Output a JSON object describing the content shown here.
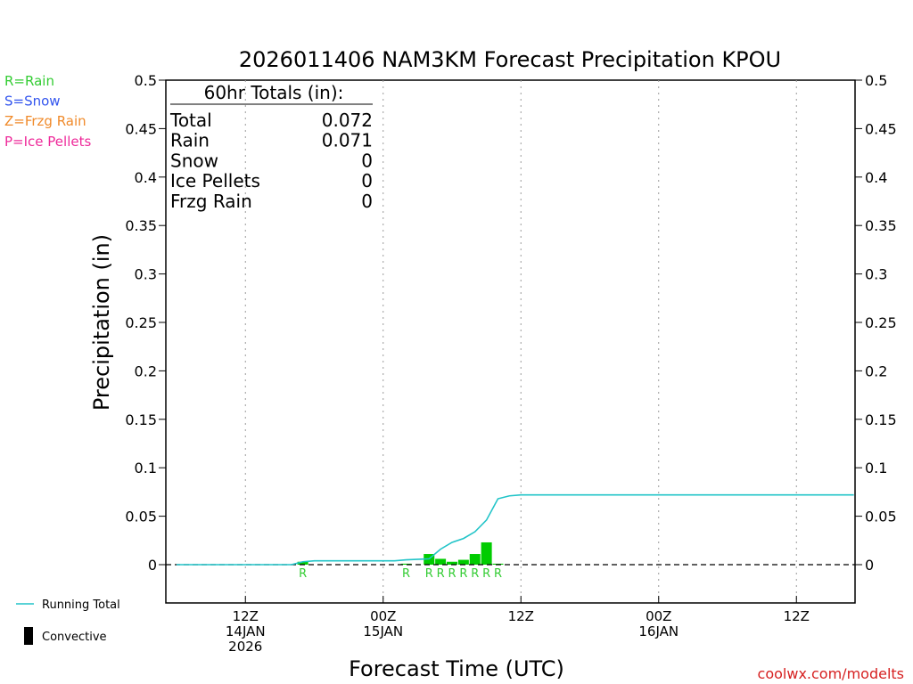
{
  "chart_data": {
    "type": "bar",
    "title": "2026011406 NAM3KM Forecast Precipitation KPOU",
    "xlabel": "Forecast Time (UTC)",
    "ylabel": "Precipitation (in)",
    "ylim": [
      -0.04,
      0.5
    ],
    "y_ticks": [
      0,
      0.05,
      0.1,
      0.15,
      0.2,
      0.25,
      0.3,
      0.35,
      0.4,
      0.45,
      0.5
    ],
    "y_tick_labels": [
      "0",
      "0.05",
      "0.1",
      "0.15",
      "0.2",
      "0.25",
      "0.3",
      "0.35",
      "0.4",
      "0.45",
      "0.5"
    ],
    "x_unit": "hours since 2026-01-14 06Z",
    "xlim": [
      -1.5,
      58.5
    ],
    "x_ticks": [
      {
        "hour": 6,
        "labels": [
          "12Z",
          "14JAN",
          "2026"
        ]
      },
      {
        "hour": 18,
        "labels": [
          "00Z",
          "15JAN"
        ]
      },
      {
        "hour": 30,
        "labels": [
          "12Z"
        ]
      },
      {
        "hour": 42,
        "labels": [
          "00Z",
          "16JAN"
        ]
      },
      {
        "hour": 54,
        "labels": [
          "12Z"
        ]
      }
    ],
    "grid": "vertical dotted at tick hours",
    "series": [
      {
        "name": "Rain",
        "kind": "bar",
        "color": "#00cc00",
        "points": [
          {
            "hour": 11,
            "value": 0.003,
            "letter": "R"
          },
          {
            "hour": 20,
            "value": 0.001,
            "letter": "R"
          },
          {
            "hour": 22,
            "value": 0.011,
            "letter": "R"
          },
          {
            "hour": 23,
            "value": 0.006,
            "letter": "R"
          },
          {
            "hour": 24,
            "value": 0.003,
            "letter": "R"
          },
          {
            "hour": 25,
            "value": 0.005,
            "letter": "R"
          },
          {
            "hour": 26,
            "value": 0.011,
            "letter": "R"
          },
          {
            "hour": 27,
            "value": 0.023,
            "letter": "R"
          },
          {
            "hour": 28,
            "value": 0.001,
            "letter": "R"
          }
        ]
      },
      {
        "name": "Running Total",
        "kind": "line",
        "color": "#22c4c8",
        "x": [
          0,
          10,
          11,
          12,
          19,
          20,
          22,
          23,
          24,
          25,
          26,
          27,
          28,
          29,
          30,
          40,
          50,
          59
        ],
        "y": [
          0,
          0,
          0.003,
          0.004,
          0.004,
          0.005,
          0.006,
          0.016,
          0.023,
          0.027,
          0.034,
          0.046,
          0.068,
          0.071,
          0.072,
          0.072,
          0.072,
          0.072
        ]
      }
    ],
    "zero_line": "dashed",
    "totals_box": {
      "header": "60hr Totals (in):",
      "rows": [
        {
          "label": "Total",
          "value": "0.072"
        },
        {
          "label": "Rain",
          "value": "0.071"
        },
        {
          "label": "Snow",
          "value": "0"
        },
        {
          "label": "Ice Pellets",
          "value": "0"
        },
        {
          "label": "Frzg Rain",
          "value": "0"
        }
      ]
    },
    "type_legend": [
      {
        "text": "R=Rain",
        "color": "#33cc33"
      },
      {
        "text": "S=Snow",
        "color": "#3355ee"
      },
      {
        "text": "Z=Frzg Rain",
        "color": "#f08a2a"
      },
      {
        "text": "P=Ice Pellets",
        "color": "#ee2a9a"
      }
    ],
    "bottom_legend": [
      {
        "text": "Running Total",
        "symbol": "line",
        "color": "#22c4c8"
      },
      {
        "text": "Convective",
        "symbol": "bar",
        "color": "#000000"
      }
    ],
    "credit": "coolwx.com/modelts",
    "credit_color": "#d62020"
  }
}
